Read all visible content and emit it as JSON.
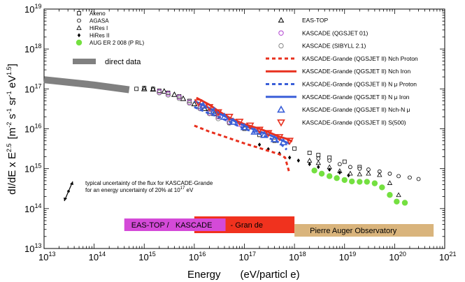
{
  "chart_data": {
    "type": "scatter",
    "title": "",
    "xlabel": "Energy (eV/particle)",
    "ylabel": "dI/dE x E^2.5 [m^-2 s^-1 sr^-1 eV^1.5]",
    "xlim": [
      10000000000000.0,
      1e+21
    ],
    "ylim": [
      10000000000000.0,
      1e+19
    ],
    "x_log": true,
    "y_log": true,
    "x_ticks": [
      {
        "base": "10",
        "exp": "13"
      },
      {
        "base": "10",
        "exp": "14"
      },
      {
        "base": "10",
        "exp": "15"
      },
      {
        "base": "10",
        "exp": "16"
      },
      {
        "base": "10",
        "exp": "17"
      },
      {
        "base": "10",
        "exp": "18"
      },
      {
        "base": "10",
        "exp": "19"
      },
      {
        "base": "10",
        "exp": "20"
      },
      {
        "base": "10",
        "exp": "21"
      }
    ],
    "y_ticks": [
      {
        "base": "10",
        "exp": "13"
      },
      {
        "base": "10",
        "exp": "14"
      },
      {
        "base": "10",
        "exp": "15"
      },
      {
        "base": "10",
        "exp": "16"
      },
      {
        "base": "10",
        "exp": "17"
      },
      {
        "base": "10",
        "exp": "18"
      },
      {
        "base": "10",
        "exp": "19"
      }
    ],
    "axis_label_x": {
      "main": "Energy",
      "unit": "(eV/particl e)"
    },
    "axis_label_y": {
      "main": "dI/dE x E",
      "exp": "2.5",
      "unit": "[m",
      "u1": "-2",
      "s": " s",
      "u2": "-1",
      "sr": " sr",
      "u3": "-1",
      "ev": " eV",
      "u4": "1.5",
      "close": "]"
    },
    "legend_left": [
      {
        "label": "Akeno",
        "marker": "square"
      },
      {
        "label": "AGASA",
        "marker": "circle"
      },
      {
        "label": "HiRes I",
        "marker": "triangle"
      },
      {
        "label": "HiRes II",
        "marker": "diamond"
      },
      {
        "label": "AUG ER 2  008 (P RL)",
        "marker": "green-dot"
      },
      {
        "label": "direct data",
        "marker": "gray-band"
      }
    ],
    "legend_right": [
      {
        "label": "EAS-TOP",
        "marker": "open-triangle-black"
      },
      {
        "label": "KASCADE (QGSJET 01)",
        "marker": "circle-violet"
      },
      {
        "label": "KASCADE (SIBYLL 2.1)",
        "marker": "circle-gray"
      },
      {
        "label": "KASCADE-Grande (QGSJET II) Nch Proton",
        "marker": "red-dashed"
      },
      {
        "label": "KASCADE-Grande (QGSJET II) Nch Iron",
        "marker": "red-solid"
      },
      {
        "label": "KASCADE-Grande (QGSJET II) N μ Proton",
        "marker": "blue-dashed"
      },
      {
        "label": "KASCADE-Grande (QGSJET II) N μ Iron",
        "marker": "blue-solid"
      },
      {
        "label": "KASCADE-Grande (QGSJET II) Nch-N μ",
        "marker": "blue-triangle"
      },
      {
        "label": "KASCADE-Grande (QGSJET II) S(500)",
        "marker": "red-triangle-down"
      }
    ],
    "uncertainty_note": {
      "line1": "typical uncertainty of the flux for KASCADE-Grande",
      "line2": "for an energy uncertainty of 20% at 10",
      "exp": "17",
      "unit": " eV"
    },
    "experiment_bands": [
      {
        "label": "EAS-TOP /",
        "color": "#d44ad8",
        "xmin": 400000000000000.0,
        "xmax": 1e+16
      },
      {
        "label": "KASCADE",
        "color": "#d44ad8",
        "xmin": 1e+16,
        "xmax": 8e+16
      },
      {
        "label": "- Gran de",
        "color": "#f0321e",
        "xmin": 1e+16,
        "xmax": 1e+18
      },
      {
        "label": "Pierre Auger Observatory",
        "color": "#d9b47c",
        "xmin": 1e+18,
        "xmax": 6e+20
      }
    ],
    "colors": {
      "gray_band": "#808080",
      "violet": "#b040d0",
      "red": "#e8301e",
      "blue": "#3a5fd8",
      "green": "#74e040",
      "auger_band": "#d9b47c",
      "kascade_band": "#d44ad8",
      "grande_band": "#f0321e"
    },
    "series": [
      {
        "name": "direct data",
        "kind": "band",
        "x": [
          10000000000000.0,
          100000000000000.0,
          500000000000000.0
        ],
        "y": [
          1.7e+17,
          1.25e+17,
          9.5e+16
        ]
      },
      {
        "name": "Akeno",
        "marker": "square",
        "x": [
          700000000000000.0,
          1000000000000000.0,
          1500000000000000.0,
          2000000000000000.0,
          3000000000000000.0,
          5000000000000000.0,
          8000000000000000.0,
          1.3e+16,
          2e+16,
          3e+16,
          5e+16,
          1e+17,
          2e+17,
          4e+17,
          1e+18,
          2e+18,
          3e+18,
          5e+18,
          1e+19,
          2e+19
        ],
        "y": [
          1e+17,
          1.05e+17,
          1e+17,
          9e+16,
          8e+16,
          6.5e+16,
          5e+16,
          3.6e+16,
          2.7e+16,
          2e+16,
          1.4e+16,
          1e+16,
          7000000000000000.0,
          5000000000000000.0,
          3200000000000000.0,
          2500000000000000.0,
          2200000000000000.0,
          1900000000000000.0,
          1500000000000000.0,
          1100000000000000.0
        ]
      },
      {
        "name": "AGASA",
        "marker": "circle",
        "x": [
          3e+18,
          5e+18,
          8e+18,
          1.3e+19,
          2e+19,
          3e+19,
          5e+19,
          8e+19,
          1.2e+20,
          2e+20,
          3e+20
        ],
        "y": [
          1800000000000000.0,
          1600000000000000.0,
          1300000000000000.0,
          1100000000000000.0,
          1000000000000000.0,
          950000000000000.0,
          850000000000000.0,
          750000000000000.0,
          650000000000000.0,
          600000000000000.0,
          550000000000000.0
        ]
      },
      {
        "name": "HiRes I",
        "marker": "triangle",
        "x": [
          2e+18,
          3e+18,
          5e+18,
          8e+18,
          1.3e+19,
          2e+19,
          3e+19,
          5e+19,
          8e+19,
          1.2e+20
        ],
        "y": [
          1600000000000000.0,
          1400000000000000.0,
          1100000000000000.0,
          880000000000000.0,
          760000000000000.0,
          730000000000000.0,
          760000000000000.0,
          700000000000000.0,
          440000000000000.0,
          220000000000000.0
        ]
      },
      {
        "name": "HiRes II",
        "marker": "diamond",
        "x": [
          2e+17,
          3e+17,
          5e+17,
          8e+17,
          1.2e+18,
          2e+18,
          3e+18,
          5e+18,
          8e+18,
          1.2e+19
        ],
        "y": [
          4000000000000000.0,
          3100000000000000.0,
          2400000000000000.0,
          1900000000000000.0,
          1600000000000000.0,
          1300000000000000.0,
          1100000000000000.0,
          950000000000000.0,
          800000000000000.0,
          680000000000000.0
        ]
      },
      {
        "name": "AUG ER 2008 (PRL)",
        "marker": "green-dot",
        "x": [
          2.5e+18,
          3.5e+18,
          5e+18,
          7e+18,
          1e+19,
          1.4e+19,
          2e+19,
          2.8e+19,
          4e+19,
          5.6e+19,
          8e+19,
          1.1e+20,
          1.6e+20
        ],
        "y": [
          900000000000000.0,
          750000000000000.0,
          650000000000000.0,
          580000000000000.0,
          520000000000000.0,
          480000000000000.0,
          470000000000000.0,
          470000000000000.0,
          430000000000000.0,
          340000000000000.0,
          220000000000000.0,
          150000000000000.0,
          140000000000000.0
        ]
      },
      {
        "name": "EAS-TOP",
        "marker": "open-triangle-black",
        "x": [
          1000000000000000.0,
          1500000000000000.0,
          2500000000000000.0,
          4000000000000000.0,
          6000000000000000.0,
          1e+16,
          1.6e+16,
          2.5e+16
        ],
        "y": [
          1e+17,
          9.8e+16,
          8.7e+16,
          7.2e+16,
          5.7e+16,
          4.2e+16,
          3.2e+16,
          2.4e+16
        ]
      },
      {
        "name": "KASCADE (QGSJET 01)",
        "marker": "circle-violet",
        "x": [
          2000000000000000.0,
          3000000000000000.0,
          5000000000000000.0,
          8000000000000000.0,
          1.3e+16,
          2e+16,
          3e+16,
          5e+16,
          8e+16
        ],
        "y": [
          8.5e+16,
          7.5e+16,
          6.2e+16,
          4.6e+16,
          3.4e+16,
          2.5e+16,
          2e+16,
          1.5e+16,
          1.3e+16
        ]
      },
      {
        "name": "KASCADE (SIBYLL 2.1)",
        "marker": "circle-gray",
        "x": [
          2000000000000000.0,
          3000000000000000.0,
          5000000000000000.0,
          8000000000000000.0,
          1.3e+16,
          2e+16,
          3e+16,
          5e+16
        ],
        "y": [
          8e+16,
          7e+16,
          5.8e+16,
          4.4e+16,
          3.2e+16,
          2.4e+16,
          1.8e+16,
          1.4e+16
        ]
      },
      {
        "name": "KASCADE-Grande Nch Proton",
        "style": "red-dashed",
        "x": [
          1e+16,
          2e+16,
          3e+16,
          5e+16,
          1e+17,
          2e+17,
          3e+17,
          5e+17,
          6.5e+17,
          8e+17
        ],
        "y": [
          1.2e+16,
          8500000000000000.0,
          7200000000000000.0,
          5800000000000000.0,
          4300000000000000.0,
          3300000000000000.0,
          2800000000000000.0,
          2300000000000000.0,
          1900000000000000.0,
          750000000000000.0
        ]
      },
      {
        "name": "KASCADE-Grande Nch Iron",
        "style": "red-solid",
        "x": [
          1.1e+16,
          2e+16,
          3e+16,
          5e+16,
          1e+17,
          2e+17,
          3e+17,
          5e+17,
          7e+17,
          9e+17
        ],
        "y": [
          6e+16,
          4e+16,
          2.8e+16,
          1.9e+16,
          1.3e+16,
          1e+16,
          8300000000000000.0,
          6300000000000000.0,
          5600000000000000.0,
          4800000000000000.0
        ]
      },
      {
        "name": "KASCADE-Grande Nmu Proton",
        "style": "blue-dashed",
        "x": [
          1e+16,
          2e+16,
          3e+16,
          5e+16,
          1e+17,
          2e+17,
          3e+17,
          5e+17,
          7e+17
        ],
        "y": [
          3.5e+16,
          2.4e+16,
          2e+16,
          1.5e+16,
          1e+16,
          7500000000000000.0,
          6000000000000000.0,
          4500000000000000.0,
          3000000000000000.0
        ]
      },
      {
        "name": "KASCADE-Grande Nmu Iron",
        "style": "blue-solid",
        "x": [
          1e+16,
          2e+16,
          3e+16,
          5e+16,
          1e+17,
          2e+17,
          3e+17,
          5e+17,
          8e+17
        ],
        "y": [
          5e+16,
          3.3e+16,
          2.5e+16,
          1.8e+16,
          1.2e+16,
          8500000000000000.0,
          7200000000000000.0,
          5500000000000000.0,
          4200000000000000.0
        ]
      },
      {
        "name": "KASCADE-Grande Nch-Nmu",
        "marker": "blue-triangle",
        "x": [
          1.5e+16,
          2.5e+16,
          4e+16,
          6e+16,
          1e+17,
          1.6e+17,
          2.5e+17,
          4e+17,
          6e+17
        ],
        "y": [
          3.8e+16,
          2.8e+16,
          2e+16,
          1.5e+16,
          1.1e+16,
          8500000000000000.0,
          7000000000000000.0,
          5500000000000000.0,
          4600000000000000.0
        ]
      },
      {
        "name": "KASCADE-Grande S(500)",
        "marker": "red-triangle-down",
        "x": [
          1.2e+16,
          2e+16,
          3e+16,
          5e+16,
          8e+16,
          1.3e+17,
          2e+17,
          3e+17,
          5e+17,
          8e+17
        ],
        "y": [
          4.6e+16,
          3.5e+16,
          2.6e+16,
          2e+16,
          1.5e+16,
          1.2e+16,
          9500000000000000.0,
          7800000000000000.0,
          6200000000000000.0,
          5000000000000000.0
        ]
      }
    ]
  }
}
